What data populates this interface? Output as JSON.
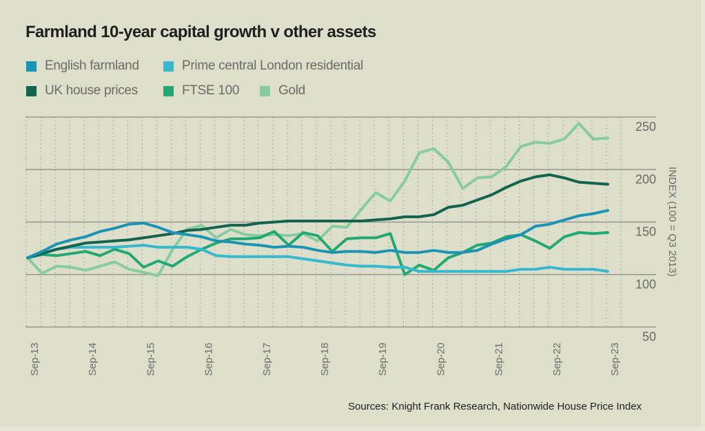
{
  "chart_data": {
    "type": "line",
    "title": "Farmland 10-year capital growth v other assets",
    "xlabel": "",
    "ylabel": "INDEX (100 = Q3 2013)",
    "ylim": [
      50,
      250
    ],
    "yticks": [
      250,
      200,
      150,
      100,
      50
    ],
    "y_tick_labels": [
      "250",
      "200",
      "150",
      "100",
      "50"
    ],
    "x_tick_labels": [
      "Sep-13",
      "Sep-14",
      "Sep-15",
      "Sep-16",
      "Sep-17",
      "Sep-18",
      "Sep-19",
      "Sep-20",
      "Sep-21",
      "Sep-22",
      "Sep-23"
    ],
    "x_frequency": "quarterly",
    "x": [
      "Q3 2013",
      "Q4 2013",
      "Q1 2014",
      "Q2 2014",
      "Q3 2014",
      "Q4 2014",
      "Q1 2015",
      "Q2 2015",
      "Q3 2015",
      "Q4 2015",
      "Q1 2016",
      "Q2 2016",
      "Q3 2016",
      "Q4 2016",
      "Q1 2017",
      "Q2 2017",
      "Q3 2017",
      "Q4 2017",
      "Q1 2018",
      "Q2 2018",
      "Q3 2018",
      "Q4 2018",
      "Q1 2019",
      "Q2 2019",
      "Q3 2019",
      "Q4 2019",
      "Q1 2020",
      "Q2 2020",
      "Q3 2020",
      "Q4 2020",
      "Q1 2021",
      "Q2 2021",
      "Q3 2021",
      "Q4 2021",
      "Q1 2022",
      "Q2 2022",
      "Q3 2022",
      "Q4 2022",
      "Q1 2023",
      "Q2 2023",
      "Q3 2023"
    ],
    "grid": "horizontal solid at ticks, vertical dotted per quarter",
    "legend_position": "top-left",
    "series": [
      {
        "name": "English farmland",
        "color": "#1a93b4",
        "values": [
          116,
          122,
          129,
          133,
          136,
          141,
          144,
          148,
          149,
          145,
          140,
          138,
          136,
          132,
          131,
          129,
          128,
          126,
          127,
          126,
          123,
          121,
          122,
          122,
          121,
          123,
          121,
          121,
          123,
          121,
          121,
          123,
          129,
          134,
          138,
          146,
          148,
          152,
          156,
          158,
          161
        ]
      },
      {
        "name": "Prime central London residential",
        "color": "#36b9cc",
        "values": [
          116,
          120,
          124,
          126,
          126,
          126,
          126,
          127,
          128,
          126,
          126,
          126,
          124,
          118,
          117,
          117,
          117,
          117,
          117,
          115,
          113,
          111,
          109,
          108,
          108,
          107,
          107,
          103,
          103,
          103,
          103,
          103,
          103,
          103,
          105,
          105,
          107,
          105,
          105,
          105,
          103
        ]
      },
      {
        "name": "UK house prices",
        "color": "#13634f",
        "values": [
          116,
          120,
          124,
          127,
          130,
          131,
          132,
          133,
          135,
          137,
          139,
          142,
          143,
          145,
          147,
          147,
          149,
          150,
          151,
          151,
          151,
          151,
          151,
          151,
          152,
          153,
          155,
          155,
          157,
          164,
          166,
          171,
          176,
          183,
          189,
          193,
          195,
          192,
          188,
          187,
          186
        ]
      },
      {
        "name": "FTSE 100",
        "color": "#22a872",
        "values": [
          116,
          119,
          118,
          120,
          122,
          118,
          124,
          120,
          107,
          113,
          108,
          117,
          124,
          130,
          134,
          134,
          135,
          141,
          128,
          140,
          137,
          122,
          134,
          135,
          135,
          139,
          100,
          109,
          104,
          116,
          121,
          128,
          130,
          136,
          138,
          132,
          125,
          136,
          140,
          139,
          140
        ]
      },
      {
        "name": "Gold",
        "color": "#86cc9f",
        "values": [
          116,
          101,
          108,
          107,
          104,
          108,
          112,
          105,
          102,
          99,
          124,
          143,
          147,
          135,
          143,
          138,
          137,
          138,
          137,
          139,
          132,
          146,
          145,
          162,
          178,
          170,
          189,
          216,
          220,
          207,
          182,
          192,
          193,
          203,
          222,
          226,
          225,
          229,
          244,
          229,
          230
        ]
      }
    ],
    "source": "Sources: Knight Frank Research, Nationwide House Price Index"
  },
  "legend": {
    "row1": [
      {
        "label": "English farmland",
        "color": "#1a93b4"
      },
      {
        "label": "Prime central London residential",
        "color": "#36b9cc"
      }
    ],
    "row2": [
      {
        "label": "UK house prices",
        "color": "#13634f"
      },
      {
        "label": "FTSE 100",
        "color": "#22a872"
      },
      {
        "label": "Gold",
        "color": "#86cc9f"
      }
    ]
  },
  "colors": {
    "background": "#dedfcb",
    "gridline": "#8a8a82",
    "text": "#6b6b66",
    "title": "#1f1f1f"
  }
}
